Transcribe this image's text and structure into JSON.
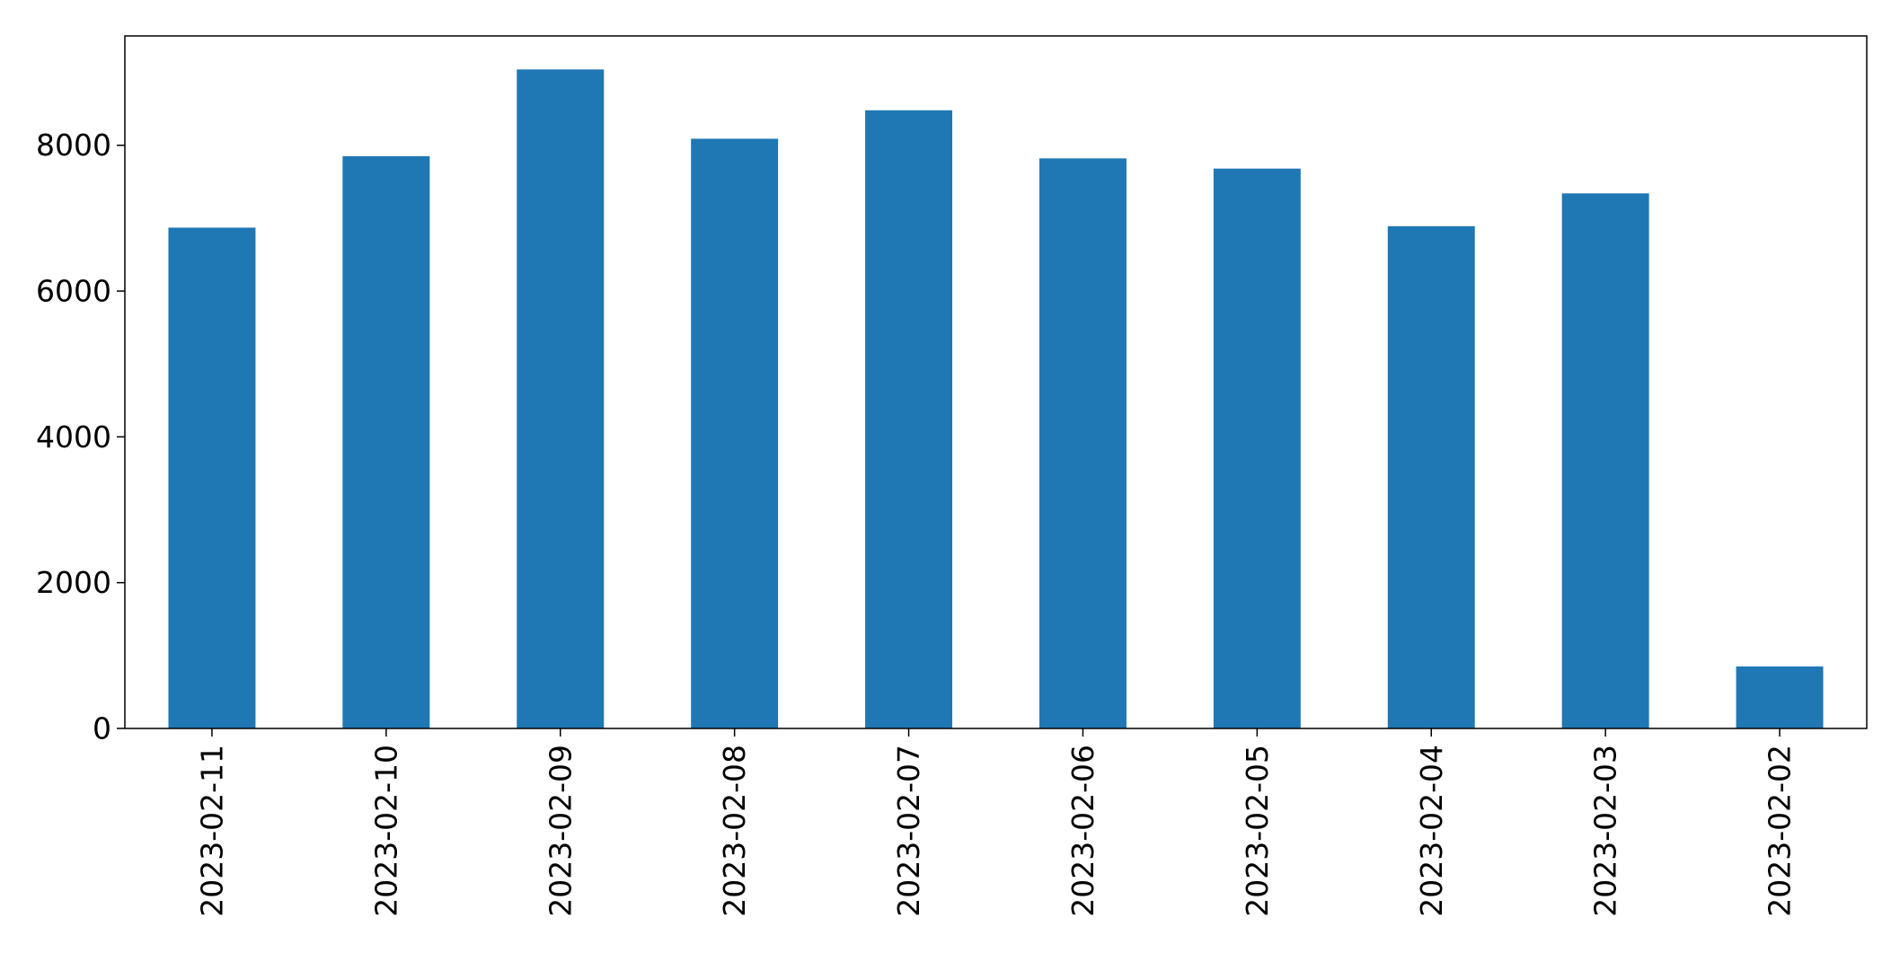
{
  "chart_data": {
    "type": "bar",
    "categories": [
      "2023-02-11",
      "2023-02-10",
      "2023-02-09",
      "2023-02-08",
      "2023-02-07",
      "2023-02-06",
      "2023-02-05",
      "2023-02-04",
      "2023-02-03",
      "2023-02-02"
    ],
    "values": [
      6870,
      7850,
      9040,
      8090,
      8480,
      7820,
      7680,
      6890,
      7340,
      850
    ],
    "title": "",
    "xlabel": "",
    "ylabel": "",
    "ylim": [
      0,
      9500
    ],
    "yticks": [
      0,
      2000,
      4000,
      6000,
      8000
    ],
    "grid": false,
    "bar_color": "#1f77b4"
  }
}
